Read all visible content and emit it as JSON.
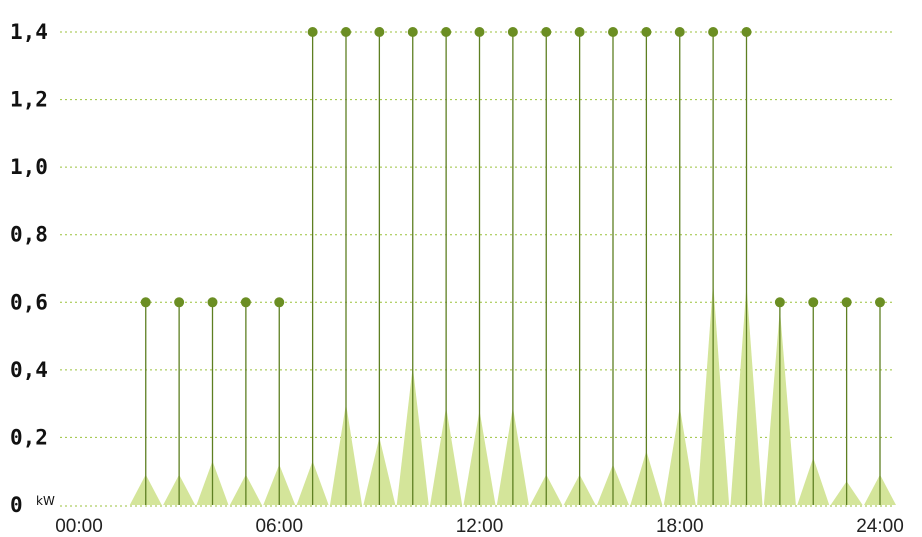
{
  "chart_data": {
    "type": "bar",
    "unit_label": "kW",
    "x_tick_labels": [
      "00:00",
      "06:00",
      "12:00",
      "18:00",
      "24:00"
    ],
    "x_tick_hours": [
      0,
      6,
      12,
      18,
      24
    ],
    "y_tick_labels": [
      "0",
      "0,2",
      "0,4",
      "0,6",
      "0,8",
      "1,0",
      "1,2",
      "1,4"
    ],
    "y_tick_values": [
      0,
      0.2,
      0.4,
      0.6,
      0.8,
      1.0,
      1.2,
      1.4
    ],
    "xlim": [
      0,
      24
    ],
    "ylim": [
      0,
      1.4
    ],
    "grid": true,
    "series": [
      {
        "style": "stem-with-marker",
        "x": [
          2,
          3,
          4,
          5,
          6,
          7,
          8,
          9,
          10,
          11,
          12,
          13,
          14,
          15,
          16,
          17,
          18,
          19,
          20,
          21,
          22,
          23,
          24
        ],
        "values": [
          0.6,
          0.6,
          0.6,
          0.6,
          0.6,
          1.4,
          1.4,
          1.4,
          1.4,
          1.4,
          1.4,
          1.4,
          1.4,
          1.4,
          1.4,
          1.4,
          1.4,
          1.4,
          1.4,
          0.6,
          0.6,
          0.6,
          0.6
        ]
      },
      {
        "style": "triangle",
        "x": [
          2,
          3,
          4,
          5,
          6,
          7,
          8,
          9,
          10,
          11,
          12,
          13,
          14,
          15,
          16,
          17,
          18,
          19,
          20,
          21,
          22,
          23,
          24
        ],
        "values": [
          0.09,
          0.09,
          0.13,
          0.09,
          0.12,
          0.13,
          0.3,
          0.2,
          0.41,
          0.29,
          0.28,
          0.29,
          0.09,
          0.09,
          0.12,
          0.16,
          0.29,
          0.66,
          0.65,
          0.58,
          0.14,
          0.07,
          0.09
        ]
      }
    ],
    "colors": {
      "stem": "#5e7f22",
      "marker": "#6b8e23",
      "triangle": "#d4e59a",
      "triangle_line": "#3f4a25",
      "grid": "#9bc23c",
      "axis": "#444444"
    }
  }
}
